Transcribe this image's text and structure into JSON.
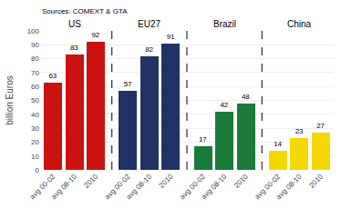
{
  "chart_data": {
    "type": "bar",
    "categories": [
      "avg 00-02",
      "avg 08-10",
      "2010"
    ],
    "series": [
      {
        "name": "US",
        "color": "#cc1111",
        "values": [
          63,
          83,
          92
        ]
      },
      {
        "name": "EU27",
        "color": "#1f3464",
        "values": [
          57,
          82,
          91
        ]
      },
      {
        "name": "Brazil",
        "color": "#1a7a3a",
        "values": [
          17,
          42,
          48
        ]
      },
      {
        "name": "China",
        "color": "#f5d800",
        "values": [
          14,
          23,
          27
        ]
      }
    ],
    "ylabel": "billion Euros",
    "annotations": [
      "Sources: COMEXT & GTA"
    ],
    "ylim": [
      0,
      100
    ],
    "yticks": [
      0,
      10,
      20,
      30,
      40,
      50,
      60,
      70,
      80,
      90,
      100
    ],
    "data_labels": true,
    "grid": true
  }
}
